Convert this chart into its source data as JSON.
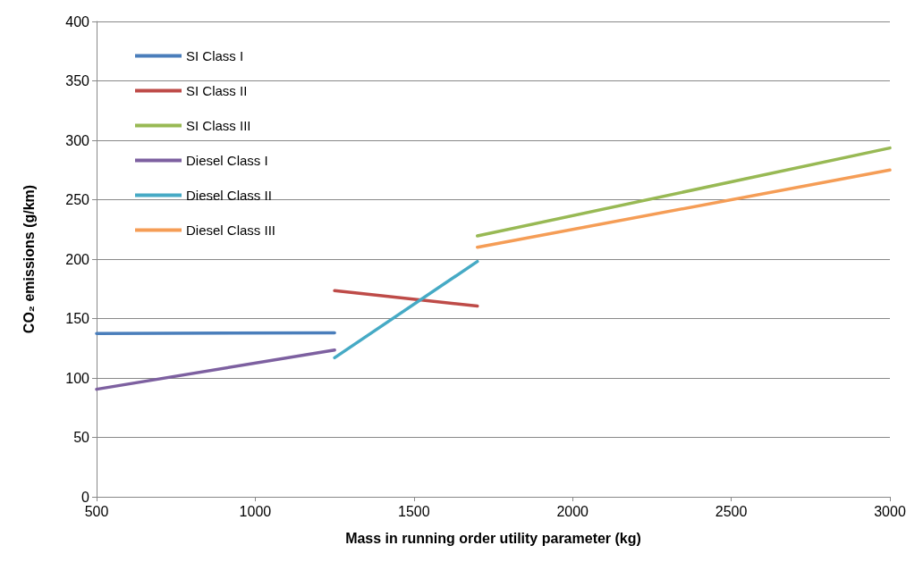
{
  "chart_data": {
    "type": "line",
    "xlabel": "Mass in running order utility parameter (kg)",
    "ylabel": "CO₂ emissions (g/km)",
    "xlim": [
      500,
      3000
    ],
    "xticks": [
      500,
      1000,
      1500,
      2000,
      2500,
      3000
    ],
    "ylim": [
      0,
      400
    ],
    "yticks": [
      0,
      50,
      100,
      150,
      200,
      250,
      300,
      350,
      400
    ],
    "grid": "y",
    "legend": "top left",
    "marker": "none",
    "line_style": "solid",
    "series": [
      {
        "name": "SI Class I",
        "color": "#4a7ebb",
        "x": [
          500,
          1250
        ],
        "values": [
          137.5,
          138
        ]
      },
      {
        "name": "SI Class II",
        "color": "#be4b48",
        "x": [
          1250,
          1700
        ],
        "values": [
          173.5,
          160.5
        ]
      },
      {
        "name": "SI Class III",
        "color": "#98b954",
        "x": [
          1700,
          3000
        ],
        "values": [
          219.5,
          293.5
        ]
      },
      {
        "name": "Diesel Class I",
        "color": "#7d60a0",
        "x": [
          500,
          1250
        ],
        "values": [
          90.5,
          123.5
        ]
      },
      {
        "name": "Diesel Class II",
        "color": "#46aac5",
        "x": [
          1250,
          1700
        ],
        "values": [
          117,
          198
        ]
      },
      {
        "name": "Diesel Class III",
        "color": "#f59d56",
        "x": [
          1700,
          3000
        ],
        "values": [
          210,
          275
        ]
      }
    ]
  }
}
